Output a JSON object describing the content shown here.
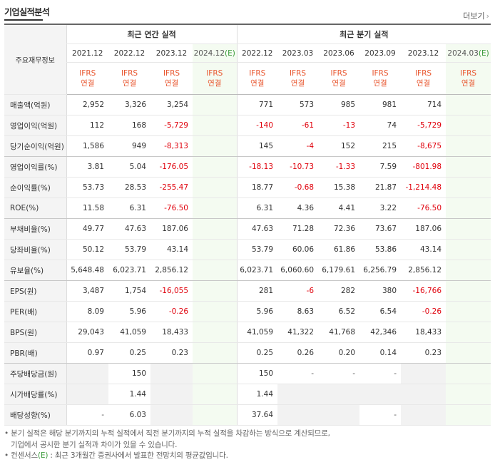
{
  "section_title": "기업실적분석",
  "more_link": "더보기",
  "more_icon": "chevron-right",
  "row_header_label": "주요재무정보",
  "groups": {
    "annual": "최근 연간 실적",
    "quarterly": "최근 분기 실적"
  },
  "periods": [
    "2021.12",
    "2022.12",
    "2023.12",
    "2024.12",
    "2022.12",
    "2023.03",
    "2023.06",
    "2023.09",
    "2023.12",
    "2024.03"
  ],
  "estimate_marker": "(E)",
  "ifrs_label": "IFRS",
  "ifrs_sub": "연결",
  "colors": {
    "negative": "#e0000b",
    "ifrs": "#e8542c",
    "estimate_bg": "#f4fbf1"
  },
  "rows": [
    {
      "label": "매출액(억원)",
      "values": [
        "2,952",
        "3,326",
        "3,254",
        "",
        "771",
        "573",
        "985",
        "981",
        "714",
        ""
      ]
    },
    {
      "label": "영업이익(억원)",
      "values": [
        "112",
        "168",
        "-5,729",
        "",
        "-140",
        "-61",
        "-13",
        "74",
        "-5,729",
        ""
      ]
    },
    {
      "label": "당기순이익(억원)",
      "values": [
        "1,586",
        "949",
        "-8,313",
        "",
        "145",
        "-4",
        "152",
        "215",
        "-8,675",
        ""
      ]
    },
    {
      "label": "영업이익률(%)",
      "values": [
        "3.81",
        "5.04",
        "-176.05",
        "",
        "-18.13",
        "-10.73",
        "-1.33",
        "7.59",
        "-801.98",
        ""
      ]
    },
    {
      "label": "순이익률(%)",
      "values": [
        "53.73",
        "28.53",
        "-255.47",
        "",
        "18.77",
        "-0.68",
        "15.38",
        "21.87",
        "-1,214.48",
        ""
      ]
    },
    {
      "label": "ROE(%)",
      "values": [
        "11.58",
        "6.31",
        "-76.50",
        "",
        "6.31",
        "4.36",
        "4.41",
        "3.22",
        "-76.50",
        ""
      ]
    },
    {
      "label": "부채비율(%)",
      "values": [
        "49.77",
        "47.63",
        "187.06",
        "",
        "47.63",
        "71.28",
        "72.36",
        "73.67",
        "187.06",
        ""
      ]
    },
    {
      "label": "당좌비율(%)",
      "values": [
        "50.12",
        "53.79",
        "43.14",
        "",
        "53.79",
        "60.06",
        "61.86",
        "53.86",
        "43.14",
        ""
      ]
    },
    {
      "label": "유보율(%)",
      "values": [
        "5,648.48",
        "6,023.71",
        "2,856.12",
        "",
        "6,023.71",
        "6,060.60",
        "6,179.61",
        "6,256.79",
        "2,856.12",
        ""
      ]
    },
    {
      "label": "EPS(원)",
      "values": [
        "3,487",
        "1,754",
        "-16,055",
        "",
        "281",
        "-6",
        "282",
        "380",
        "-16,766",
        ""
      ]
    },
    {
      "label": "PER(배)",
      "values": [
        "8.09",
        "5.96",
        "-0.26",
        "",
        "5.96",
        "8.63",
        "6.52",
        "6.54",
        "-0.26",
        ""
      ]
    },
    {
      "label": "BPS(원)",
      "values": [
        "29,043",
        "41,059",
        "18,433",
        "",
        "41,059",
        "41,322",
        "41,768",
        "42,346",
        "18,433",
        ""
      ]
    },
    {
      "label": "PBR(배)",
      "values": [
        "0.97",
        "0.25",
        "0.23",
        "",
        "0.25",
        "0.26",
        "0.20",
        "0.14",
        "0.23",
        ""
      ]
    },
    {
      "label": "주당배당금(원)",
      "values": [
        "",
        "150",
        "",
        "",
        "150",
        "-",
        "-",
        "-",
        "",
        ""
      ]
    },
    {
      "label": "시가배당률(%)",
      "values": [
        "",
        "1.44",
        "",
        "",
        "1.44",
        "",
        "",
        "",
        "",
        ""
      ]
    },
    {
      "label": "배당성향(%)",
      "values": [
        "-",
        "6.03",
        "",
        "",
        "37.64",
        "",
        "",
        "-",
        "",
        ""
      ]
    }
  ],
  "notes": {
    "line1": "분기 실적은 해당 분기까지의 누적 실적에서 직전 분기까지의 누적 실적을 차감하는 방식으로 계산되므로,",
    "line2": "기업에서 공시한 분기 실적과 차이가 있을 수 있습니다.",
    "line3_prefix": "컨센서스",
    "line3_marker": "(E)",
    "line3_suffix": " : 최근 3개월간 증권사에서 발표한 전망치의 평균값입니다."
  }
}
